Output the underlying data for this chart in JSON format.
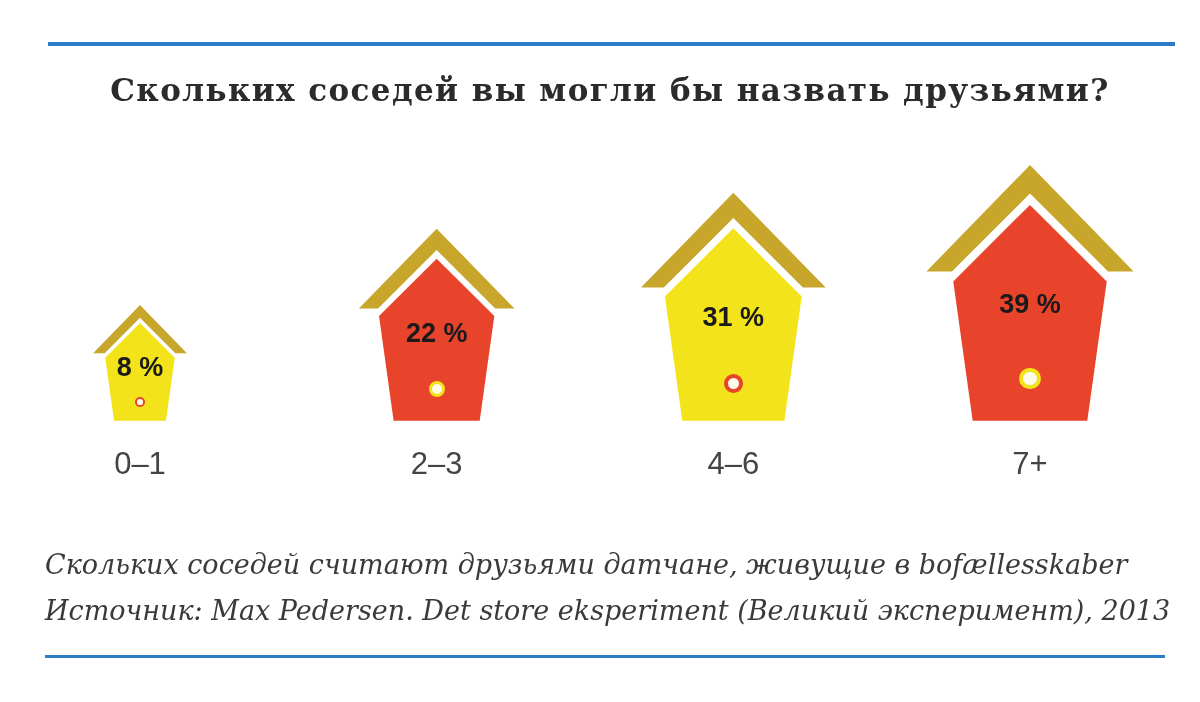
{
  "chart_data": {
    "type": "other",
    "title": "Скольких соседей вы могли бы назвать друзьями?",
    "categories": [
      "0–1",
      "2–3",
      "4–6",
      "7+"
    ],
    "values": [
      8,
      22,
      31,
      39
    ],
    "colors": [
      "#f2e31b",
      "#e8432b",
      "#f2e31b",
      "#e8432b"
    ],
    "value_labels": [
      "8 %",
      "22 %",
      "31 %",
      "39 %"
    ],
    "annotations": [
      "Скольких соседей считают друзьями датчане, живущие в bofællesskaber",
      "Источник: Max Pedersen. Det store eksperiment (Великий эксперимент), 2013"
    ]
  }
}
